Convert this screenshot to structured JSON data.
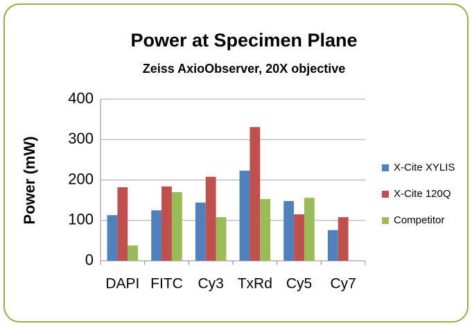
{
  "chart_data": {
    "type": "bar",
    "title": "Power at Specimen Plane",
    "subtitle": "Zeiss AxioObserver, 20X objective",
    "y_label": "Power (mW)",
    "categories": [
      "DAPI",
      "FITC",
      "Cy3",
      "TxRd",
      "Cy5",
      "Cy7"
    ],
    "series": [
      {
        "name": "X-Cite XYLIS",
        "color": "#4f81bd",
        "values": [
          113,
          125,
          144,
          223,
          148,
          76
        ]
      },
      {
        "name": "X-Cite 120Q",
        "color": "#c0504d",
        "values": [
          182,
          184,
          208,
          331,
          115,
          108
        ]
      },
      {
        "name": "Competitor",
        "color": "#9bbb59",
        "values": [
          38,
          170,
          108,
          153,
          156,
          null
        ]
      }
    ],
    "ylim": [
      0,
      400
    ],
    "yticks": [
      0,
      100,
      200,
      300,
      400
    ],
    "grid": true,
    "legend": "right"
  }
}
